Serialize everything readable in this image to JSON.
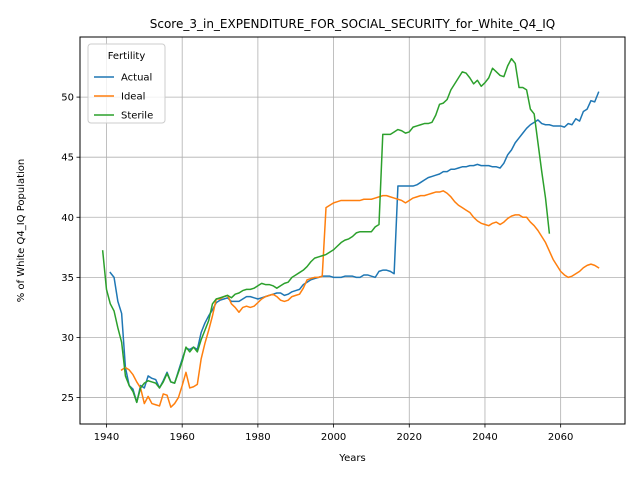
{
  "chart_data": {
    "type": "line",
    "title": "Score_3_in_EXPENDITURE_FOR_SOCIAL_SECURITY_for_White_Q4_IQ",
    "xlabel": "Years",
    "ylabel": "% of White Q4_IQ Population",
    "xlim": [
      1933,
      2077
    ],
    "ylim": [
      22.8,
      55.0
    ],
    "xticks": [
      1940,
      1960,
      1980,
      2000,
      2020,
      2040,
      2060
    ],
    "yticks": [
      25,
      30,
      35,
      40,
      45,
      50
    ],
    "grid": true,
    "legend": {
      "title": "Fertility",
      "placement": "top-left"
    },
    "colors": {
      "Actual": "#1f77b4",
      "Ideal": "#ff7f0e",
      "Sterile": "#2ca02c"
    },
    "series": [
      {
        "name": "Actual",
        "x": [
          1941,
          1942,
          1943,
          1944,
          1945,
          1946,
          1947,
          1948,
          1949,
          1950,
          1951,
          1952,
          1953,
          1954,
          1955,
          1956,
          1957,
          1958,
          1959,
          1960,
          1961,
          1962,
          1963,
          1964,
          1965,
          1966,
          1967,
          1968,
          1969,
          1970,
          1971,
          1972,
          1973,
          1974,
          1975,
          1976,
          1977,
          1978,
          1979,
          1980,
          1981,
          1982,
          1983,
          1984,
          1985,
          1986,
          1987,
          1988,
          1989,
          1990,
          1991,
          1992,
          1993,
          1994,
          1995,
          1996,
          1997,
          1998,
          1999,
          2000,
          2001,
          2002,
          2003,
          2004,
          2005,
          2006,
          2007,
          2008,
          2009,
          2010,
          2011,
          2012,
          2013,
          2014,
          2015,
          2016,
          2017,
          2018,
          2019,
          2020,
          2021,
          2022,
          2023,
          2024,
          2025,
          2026,
          2027,
          2028,
          2029,
          2030,
          2031,
          2032,
          2033,
          2034,
          2035,
          2036,
          2037,
          2038,
          2039,
          2040,
          2041,
          2042,
          2043,
          2044,
          2045,
          2046,
          2047,
          2048,
          2049,
          2050,
          2051,
          2052,
          2053,
          2054,
          2055,
          2056,
          2057,
          2058,
          2059,
          2060,
          2061,
          2062,
          2063,
          2064,
          2065,
          2066,
          2067,
          2068,
          2069,
          2070
        ],
        "y": [
          35.4,
          35.0,
          33.0,
          32.0,
          27.5,
          26.0,
          25.7,
          24.6,
          26.0,
          25.8,
          26.8,
          26.6,
          26.5,
          25.8,
          26.4,
          27.1,
          26.3,
          26.2,
          27.2,
          28.2,
          29.1,
          29.0,
          29.2,
          29.0,
          30.4,
          31.2,
          31.8,
          32.3,
          32.9,
          33.1,
          33.2,
          33.3,
          33.0,
          33.0,
          33.0,
          33.2,
          33.4,
          33.4,
          33.3,
          33.2,
          33.3,
          33.4,
          33.5,
          33.6,
          33.7,
          33.7,
          33.5,
          33.6,
          33.8,
          33.9,
          34.0,
          34.4,
          34.6,
          34.8,
          34.9,
          35.0,
          35.1,
          35.1,
          35.1,
          35.0,
          35.0,
          35.0,
          35.1,
          35.1,
          35.1,
          35.0,
          35.0,
          35.2,
          35.2,
          35.1,
          35.0,
          35.5,
          35.6,
          35.6,
          35.5,
          35.3,
          42.6,
          42.6,
          42.6,
          42.6,
          42.6,
          42.7,
          42.9,
          43.1,
          43.3,
          43.4,
          43.5,
          43.6,
          43.8,
          43.8,
          44.0,
          44.0,
          44.1,
          44.2,
          44.2,
          44.3,
          44.3,
          44.4,
          44.3,
          44.3,
          44.3,
          44.2,
          44.2,
          44.1,
          44.5,
          45.2,
          45.6,
          46.2,
          46.6,
          47.0,
          47.4,
          47.7,
          47.9,
          48.1,
          47.8,
          47.7,
          47.7,
          47.6,
          47.6,
          47.6,
          47.5,
          47.8,
          47.7,
          48.2,
          48.0,
          48.8,
          49.0,
          49.7,
          49.6,
          50.4
        ]
      },
      {
        "name": "Ideal",
        "x": [
          1944,
          1945,
          1946,
          1947,
          1948,
          1949,
          1950,
          1951,
          1952,
          1953,
          1954,
          1955,
          1956,
          1957,
          1958,
          1959,
          1960,
          1961,
          1962,
          1963,
          1964,
          1965,
          1966,
          1967,
          1968,
          1969,
          1970,
          1971,
          1972,
          1973,
          1974,
          1975,
          1976,
          1977,
          1978,
          1979,
          1980,
          1981,
          1982,
          1983,
          1984,
          1985,
          1986,
          1987,
          1988,
          1989,
          1990,
          1991,
          1992,
          1993,
          1994,
          1995,
          1996,
          1997,
          1998,
          1999,
          2000,
          2001,
          2002,
          2003,
          2004,
          2005,
          2006,
          2007,
          2008,
          2009,
          2010,
          2011,
          2012,
          2013,
          2014,
          2015,
          2016,
          2017,
          2018,
          2019,
          2020,
          2021,
          2022,
          2023,
          2024,
          2025,
          2026,
          2027,
          2028,
          2029,
          2030,
          2031,
          2032,
          2033,
          2034,
          2035,
          2036,
          2037,
          2038,
          2039,
          2040,
          2041,
          2042,
          2043,
          2044,
          2045,
          2046,
          2047,
          2048,
          2049,
          2050,
          2051,
          2052,
          2053,
          2054,
          2055,
          2056,
          2057,
          2058,
          2059,
          2060,
          2061,
          2062,
          2063,
          2064,
          2065,
          2066,
          2067,
          2068,
          2069,
          2070
        ],
        "y": [
          27.3,
          27.5,
          27.3,
          26.9,
          26.3,
          25.8,
          24.5,
          25.1,
          24.5,
          24.4,
          24.3,
          25.3,
          25.2,
          24.2,
          24.5,
          25.0,
          26.0,
          27.1,
          25.8,
          25.9,
          26.1,
          28.2,
          29.5,
          30.6,
          31.8,
          33.2,
          33.2,
          33.4,
          33.5,
          32.8,
          32.5,
          32.1,
          32.5,
          32.6,
          32.5,
          32.6,
          32.9,
          33.2,
          33.4,
          33.5,
          33.6,
          33.4,
          33.1,
          33.0,
          33.1,
          33.4,
          33.5,
          33.6,
          34.1,
          34.8,
          34.9,
          35.0,
          35.0,
          35.1,
          40.8,
          41.0,
          41.2,
          41.3,
          41.4,
          41.4,
          41.4,
          41.4,
          41.4,
          41.4,
          41.5,
          41.5,
          41.5,
          41.6,
          41.7,
          41.8,
          41.8,
          41.7,
          41.6,
          41.5,
          41.4,
          41.2,
          41.4,
          41.6,
          41.7,
          41.8,
          41.8,
          41.9,
          42.0,
          42.1,
          42.1,
          42.2,
          42.0,
          41.7,
          41.3,
          41.0,
          40.8,
          40.6,
          40.4,
          40.0,
          39.7,
          39.5,
          39.4,
          39.3,
          39.5,
          39.6,
          39.4,
          39.6,
          39.9,
          40.1,
          40.2,
          40.2,
          40.0,
          40.0,
          39.6,
          39.3,
          38.9,
          38.4,
          37.9,
          37.2,
          36.5,
          36.0,
          35.5,
          35.2,
          35.0,
          35.1,
          35.3,
          35.5,
          35.8,
          36.0,
          36.1,
          36.0,
          35.8
        ]
      },
      {
        "name": "Sterile",
        "x": [
          1939,
          1940,
          1941,
          1942,
          1943,
          1944,
          1945,
          1946,
          1947,
          1948,
          1949,
          1950,
          1951,
          1952,
          1953,
          1954,
          1955,
          1956,
          1957,
          1958,
          1959,
          1960,
          1961,
          1962,
          1963,
          1964,
          1965,
          1966,
          1967,
          1968,
          1969,
          1970,
          1971,
          1972,
          1973,
          1974,
          1975,
          1976,
          1977,
          1978,
          1979,
          1980,
          1981,
          1982,
          1983,
          1984,
          1985,
          1986,
          1987,
          1988,
          1989,
          1990,
          1991,
          1992,
          1993,
          1994,
          1995,
          1996,
          1997,
          1998,
          1999,
          2000,
          2001,
          2002,
          2003,
          2004,
          2005,
          2006,
          2007,
          2008,
          2009,
          2010,
          2011,
          2012,
          2013,
          2014,
          2015,
          2016,
          2017,
          2018,
          2019,
          2020,
          2021,
          2022,
          2023,
          2024,
          2025,
          2026,
          2027,
          2028,
          2029,
          2030,
          2031,
          2032,
          2033,
          2034,
          2035,
          2036,
          2037,
          2038,
          2039,
          2040,
          2041,
          2042,
          2043,
          2044,
          2045,
          2046,
          2047,
          2048,
          2049,
          2050,
          2051,
          2052,
          2053,
          2054,
          2055,
          2056,
          2057
        ],
        "y": [
          37.2,
          34.0,
          32.8,
          32.2,
          30.8,
          29.6,
          26.8,
          26.0,
          25.5,
          24.6,
          25.8,
          26.2,
          26.4,
          26.3,
          26.2,
          25.8,
          26.3,
          27.0,
          26.3,
          26.2,
          27.1,
          28.0,
          29.2,
          28.8,
          29.2,
          28.8,
          29.8,
          30.6,
          31.4,
          32.8,
          33.2,
          33.3,
          33.4,
          33.5,
          33.3,
          33.6,
          33.7,
          33.9,
          34.0,
          34.0,
          34.1,
          34.3,
          34.5,
          34.4,
          34.4,
          34.3,
          34.1,
          34.3,
          34.5,
          34.6,
          35.0,
          35.2,
          35.4,
          35.6,
          35.9,
          36.3,
          36.6,
          36.7,
          36.8,
          36.9,
          37.1,
          37.3,
          37.6,
          37.9,
          38.1,
          38.2,
          38.4,
          38.7,
          38.8,
          38.8,
          38.8,
          38.8,
          39.2,
          39.4,
          46.9,
          46.9,
          46.9,
          47.1,
          47.3,
          47.2,
          47.0,
          47.1,
          47.5,
          47.6,
          47.7,
          47.8,
          47.8,
          47.9,
          48.5,
          49.4,
          49.5,
          49.8,
          50.6,
          51.1,
          51.6,
          52.1,
          52.0,
          51.6,
          51.1,
          51.4,
          50.9,
          51.2,
          51.6,
          52.4,
          52.1,
          51.8,
          51.7,
          52.6,
          53.2,
          52.8,
          50.8,
          50.8,
          50.6,
          49.0,
          48.6,
          46.2,
          43.8,
          41.6,
          38.7
        ]
      }
    ]
  }
}
